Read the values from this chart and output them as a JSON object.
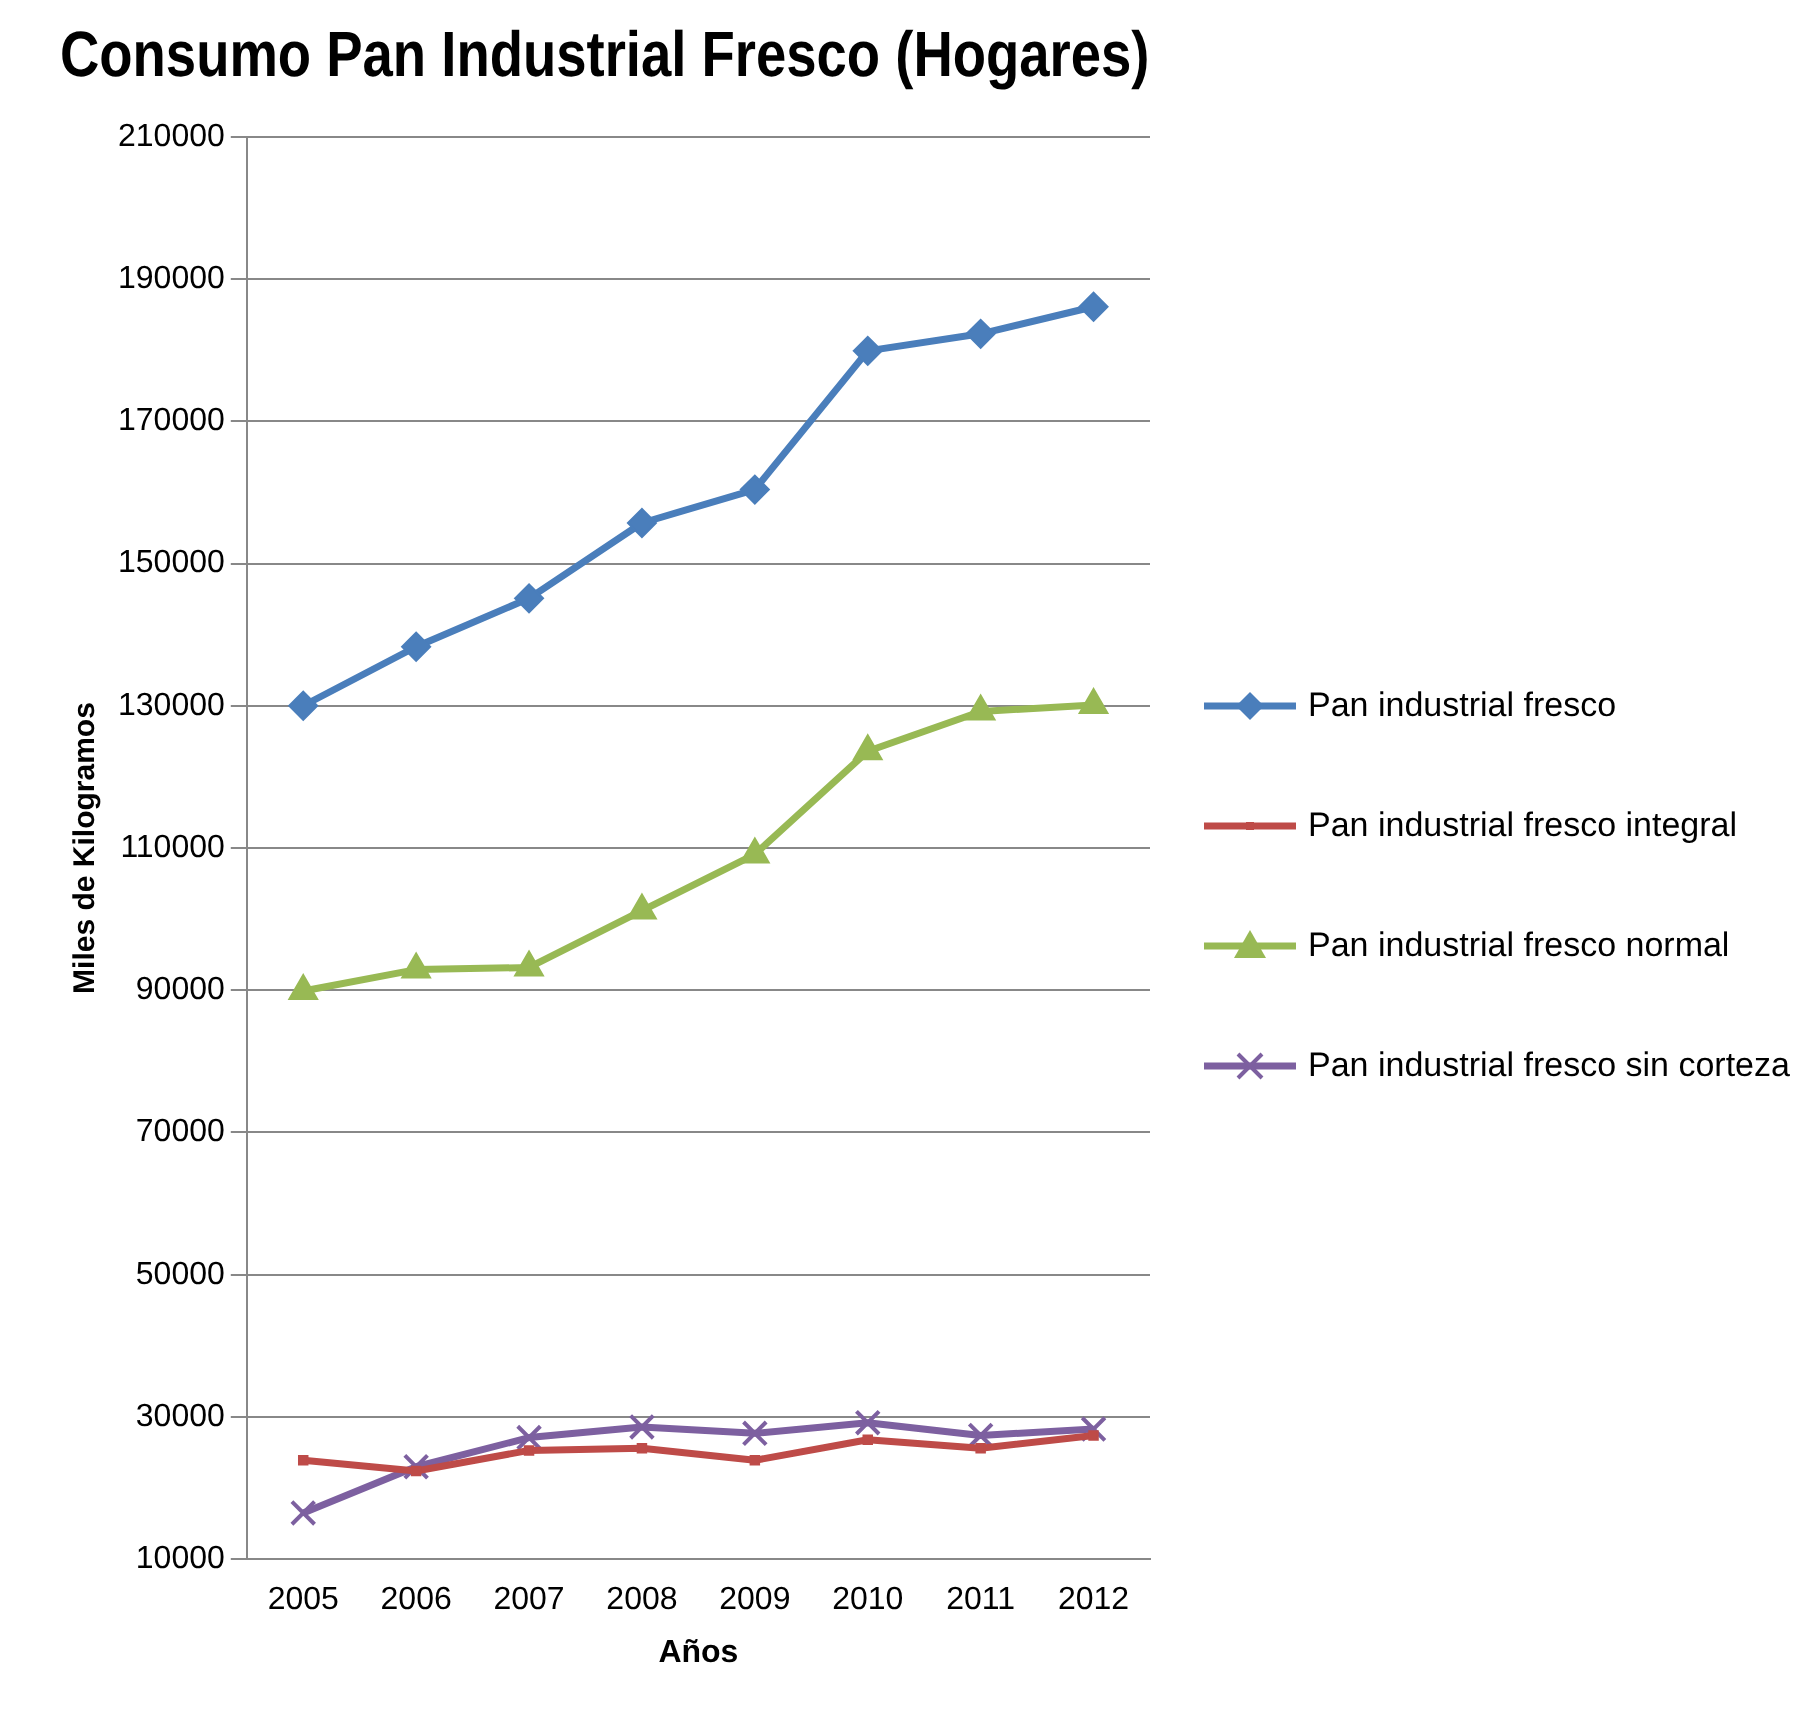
{
  "chart_data": {
    "type": "line",
    "title": "Consumo Pan Industrial Fresco (Hogares)",
    "xlabel": "Años",
    "ylabel": "Miles de Kilogramos",
    "categories": [
      "2005",
      "2006",
      "2007",
      "2008",
      "2009",
      "2010",
      "2011",
      "2012"
    ],
    "series": [
      {
        "name": "Pan industrial fresco",
        "color": "#4a7ebb",
        "marker": "diamond",
        "values": [
          130000,
          138300,
          145100,
          155700,
          160400,
          179900,
          182300,
          186100
        ]
      },
      {
        "name": "Pan industrial fresco integral",
        "color": "#be4b48",
        "marker": "square",
        "values": [
          23900,
          22400,
          25300,
          25600,
          23900,
          26800,
          25600,
          27400
        ]
      },
      {
        "name": "Pan industrial fresco normal",
        "color": "#98b954",
        "marker": "triangle",
        "values": [
          89900,
          92900,
          93200,
          101200,
          109100,
          123600,
          129200,
          130100
        ]
      },
      {
        "name": "Pan industrial fresco sin corteza",
        "color": "#7d60a0",
        "marker": "cross",
        "values": [
          16500,
          23000,
          27100,
          28600,
          27700,
          29200,
          27400,
          28300
        ]
      }
    ],
    "ylim": [
      10000,
      210000
    ],
    "yticks": [
      10000,
      30000,
      50000,
      70000,
      90000,
      110000,
      130000,
      150000,
      170000,
      190000,
      210000
    ],
    "grid": "y",
    "legend": "right",
    "line_style": "solid"
  }
}
